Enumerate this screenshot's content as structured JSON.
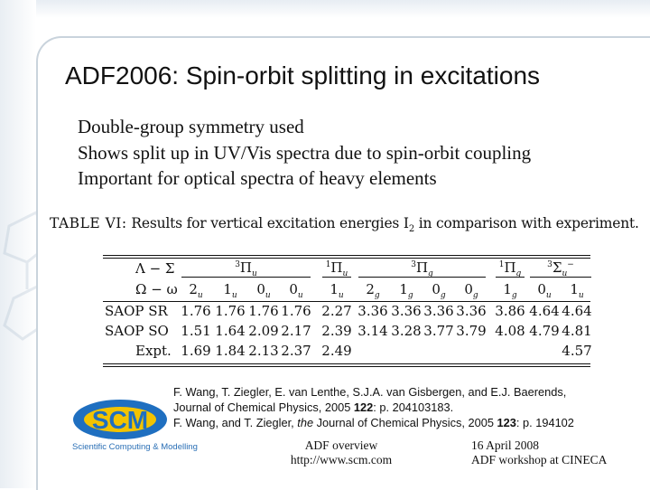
{
  "slide": {
    "title": "ADF2006: Spin-orbit splitting in excitations",
    "bullets": [
      "Double-group symmetry used",
      "Shows split up in UV/Vis spectra due to spin-orbit coupling",
      "Important for optical spectra of heavy elements"
    ]
  },
  "table": {
    "caption_label": "TABLE VI:",
    "caption_text": "Results for vertical excitation energies I",
    "caption_sub": "2",
    "caption_rest": " in comparison with experiment.",
    "header1_label": "Λ − Σ",
    "header2_label": "Ω − ω",
    "groups": [
      {
        "pre": "3",
        "sym": "Π",
        "sub": "u"
      },
      {
        "pre": "1",
        "sym": "Π",
        "sub": "u"
      },
      {
        "pre": "3",
        "sym": "Π",
        "sub": "g"
      },
      {
        "pre": "1",
        "sym": "Π",
        "sub": "g"
      },
      {
        "pre": "3",
        "sym": "Σ",
        "sub": "u",
        "post": "−"
      }
    ],
    "omega": [
      {
        "n": "2",
        "s": "u"
      },
      {
        "n": "1",
        "s": "u"
      },
      {
        "n": "0",
        "s": "u"
      },
      {
        "n": "0",
        "s": "u"
      },
      {
        "n": "1",
        "s": "u"
      },
      {
        "n": "2",
        "s": "g"
      },
      {
        "n": "1",
        "s": "g"
      },
      {
        "n": "0",
        "s": "g"
      },
      {
        "n": "0",
        "s": "g"
      },
      {
        "n": "1",
        "s": "g"
      },
      {
        "n": "0",
        "s": "u"
      },
      {
        "n": "1",
        "s": "u"
      }
    ],
    "rows": [
      {
        "label": "SAOP SR",
        "values": [
          "1.76",
          "1.76",
          "1.76",
          "1.76",
          "2.27",
          "3.36",
          "3.36",
          "3.36",
          "3.36",
          "3.86",
          "4.64",
          "4.64"
        ]
      },
      {
        "label": "SAOP SO",
        "values": [
          "1.51",
          "1.64",
          "2.09",
          "2.17",
          "2.39",
          "3.14",
          "3.28",
          "3.77",
          "3.79",
          "4.08",
          "4.79",
          "4.81"
        ]
      },
      {
        "label": "Expt.",
        "values": [
          "1.69",
          "1.84",
          "2.13",
          "2.37",
          "2.49",
          "",
          "",
          "",
          "",
          "",
          "",
          "4.57"
        ]
      }
    ]
  },
  "references": {
    "ref1_line1": "F. Wang, T. Ziegler, E. van Lenthe, S.J.A. van Gisbergen, and E.J. Baerends,",
    "ref1_line2_pre": "Journal of Chemical Physics, 2005 ",
    "ref1_vol": "122",
    "ref1_line2_post": ": p. 204103183.",
    "ref2_pre": "F. Wang, and T. Ziegler, ",
    "ref2_the": "the",
    "ref2_mid": " Journal of Chemical Physics, 2005 ",
    "ref2_vol": "123",
    "ref2_post": ": p. 194102"
  },
  "logo": {
    "text": "SCM",
    "caption": "Scientific Computing & Modelling",
    "colors": {
      "blue": "#1f6fc0",
      "yellow": "#f2c300"
    }
  },
  "footer": {
    "mid_line1": "ADF overview",
    "mid_line2": "http://www.scm.com",
    "right_line1": "16 April 2008",
    "right_line2": "ADF workshop at CINECA"
  }
}
